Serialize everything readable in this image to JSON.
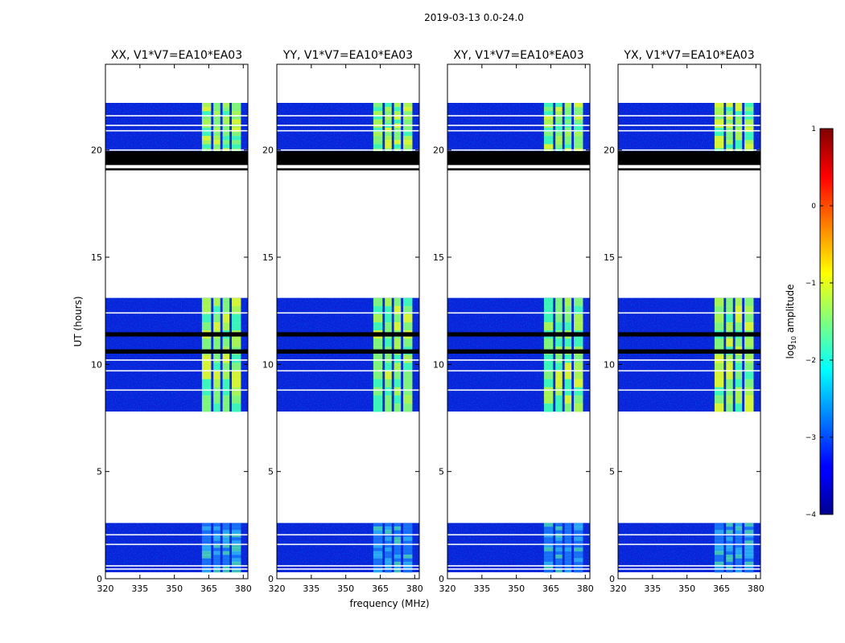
{
  "chart_data": {
    "type": "heatmap",
    "suptitle": "2019-03-13 0.0-24.0",
    "xlabel": "frequency (MHz)",
    "ylabel": "UT (hours)",
    "xlim": [
      320,
      382
    ],
    "ylim": [
      0,
      24
    ],
    "x_ticks": [
      320,
      335,
      350,
      365,
      380
    ],
    "y_ticks": [
      0,
      5,
      10,
      15,
      20
    ],
    "panels": [
      {
        "title": "XX, V1*V7=EA10*EA03"
      },
      {
        "title": "YY, V1*V7=EA10*EA03"
      },
      {
        "title": "XY, V1*V7=EA10*EA03"
      },
      {
        "title": "YX, V1*V7=EA10*EA03"
      }
    ],
    "colorbar": {
      "label_prefix": "log",
      "label_sub": "10",
      "label_suffix": " amplitude",
      "range": [
        -4,
        1
      ],
      "ticks": [
        1,
        0,
        -1,
        -2,
        -3,
        -4
      ],
      "colormap": "jet"
    },
    "data_blocks_ut": [
      [
        0.3,
        2.6
      ],
      [
        7.8,
        13.1
      ],
      [
        19.5,
        22.2
      ]
    ],
    "flagged_black_ut": [
      [
        19.3,
        19.95
      ],
      [
        19.05,
        19.15
      ],
      [
        10.5,
        10.7
      ],
      [
        11.3,
        11.5
      ]
    ],
    "bright_band_mhz": [
      362,
      380
    ],
    "bright_channels_mhz": [
      [
        362,
        366
      ],
      [
        367,
        370
      ],
      [
        371,
        374
      ],
      [
        375,
        379
      ]
    ],
    "white_gap_rows_ut": [
      0.45,
      0.6,
      1.6,
      2.05,
      8.8,
      9.7,
      10.2,
      12.4,
      20.0,
      20.9,
      21.15,
      21.6
    ]
  }
}
